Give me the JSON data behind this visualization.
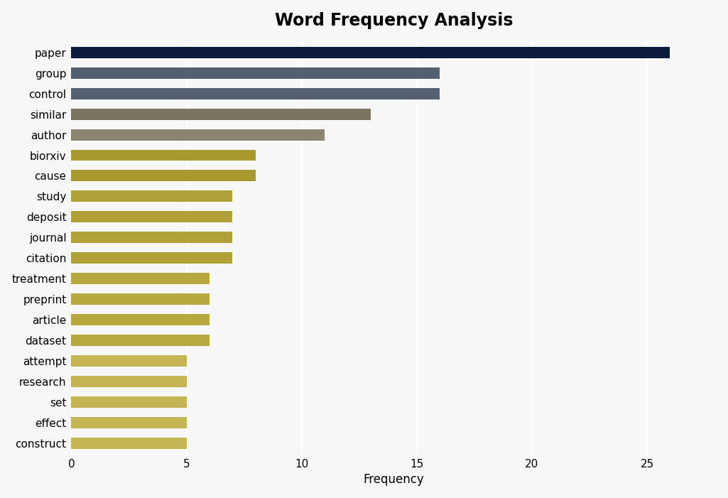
{
  "categories": [
    "construct",
    "effect",
    "set",
    "research",
    "attempt",
    "dataset",
    "article",
    "preprint",
    "treatment",
    "citation",
    "journal",
    "deposit",
    "study",
    "cause",
    "biorxiv",
    "author",
    "similar",
    "control",
    "group",
    "paper"
  ],
  "values": [
    5,
    5,
    5,
    5,
    5,
    6,
    6,
    6,
    6,
    7,
    7,
    7,
    7,
    8,
    8,
    11,
    13,
    16,
    16,
    26
  ],
  "bar_colors": [
    "#c4b454",
    "#c4b454",
    "#c4b454",
    "#c4b454",
    "#c4b454",
    "#b8a840",
    "#b8a840",
    "#b8a840",
    "#b8a840",
    "#b0a038",
    "#b0a038",
    "#b0a038",
    "#b0a038",
    "#a89830",
    "#a89830",
    "#8a8470",
    "#7a7460",
    "#555f72",
    "#555f72",
    "#0d1b3e"
  ],
  "title": "Word Frequency Analysis",
  "xlabel": "Frequency",
  "ylabel": "",
  "xlim": [
    0,
    28
  ],
  "xticks": [
    0,
    5,
    10,
    15,
    20,
    25
  ],
  "title_fontsize": 17,
  "axis_fontsize": 12,
  "tick_fontsize": 11,
  "background_color": "#f7f7f7",
  "plot_background_color": "#f7f7f7",
  "bar_height": 0.55
}
